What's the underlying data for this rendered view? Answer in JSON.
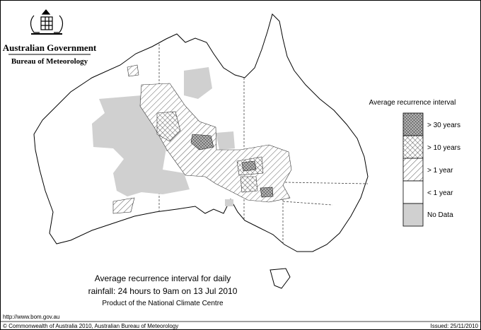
{
  "header": {
    "agency": "Australian Government",
    "bureau": "Bureau of Meteorology"
  },
  "legend": {
    "title": "Average recurrence interval",
    "items": [
      "> 30 years",
      "> 10 years",
      "> 1 year",
      "< 1 year",
      "No Data"
    ]
  },
  "caption": {
    "line1": "Average recurrence interval for daily",
    "line2": "rainfall: 24 hours to 9am on 13 Jul 2010",
    "line3": "Product of the National Climate Centre"
  },
  "footer": {
    "url": "http://www.bom.gov.au",
    "copyright": "© Commonwealth of Australia 2010, Australian Bureau of Meteorology",
    "issued": "Issued: 25/11/2010"
  }
}
